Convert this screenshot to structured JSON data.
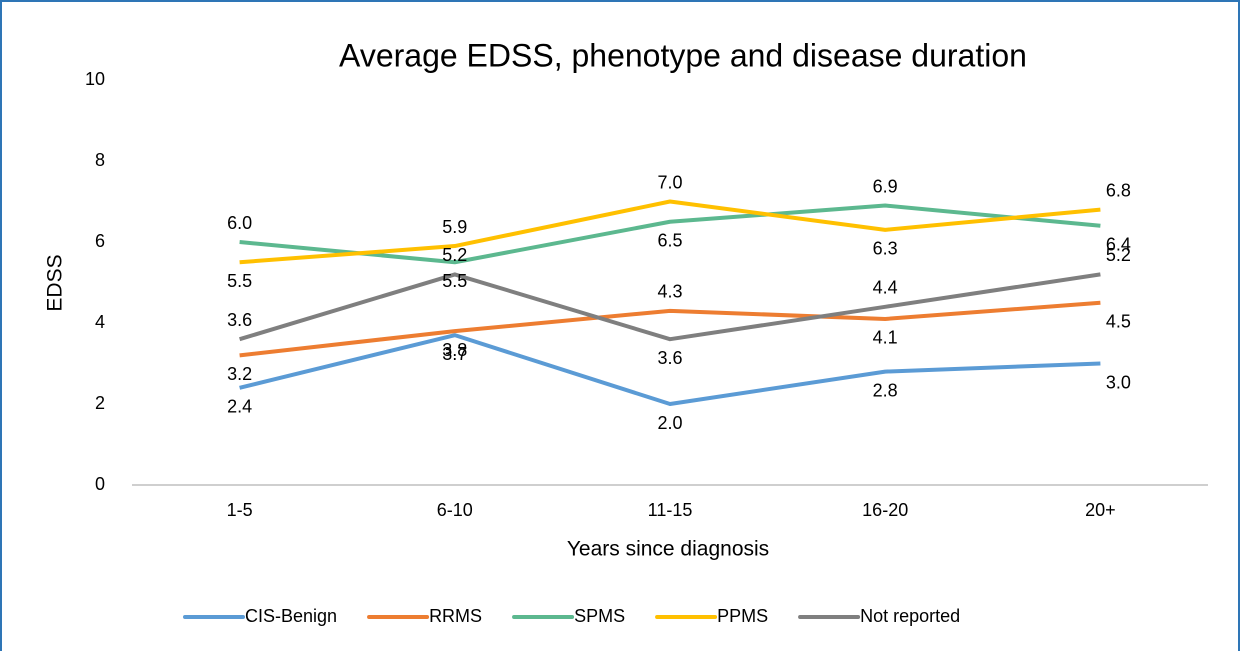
{
  "chart_data": {
    "type": "line",
    "title": "Average EDSS, phenotype and disease duration",
    "x_label": "Years since diagnosis",
    "y_label": "EDSS",
    "categories": [
      "1-5",
      "6-10",
      "11-15",
      "16-20",
      "20+"
    ],
    "ylim": [
      0,
      10
    ],
    "yticks": [
      0,
      2,
      4,
      6,
      8,
      10
    ],
    "grid": false,
    "legend": "bottom",
    "series": [
      {
        "name": "CIS-Benign",
        "color": "#5b9bd5",
        "values": [
          2.4,
          3.7,
          2.0,
          2.8,
          3.0
        ],
        "value_labels": [
          "2.4",
          "3.7",
          "2.0",
          "2.8",
          "3.0"
        ]
      },
      {
        "name": "RRMS",
        "color": "#ed7d31",
        "values": [
          3.2,
          3.8,
          4.3,
          4.1,
          4.5
        ],
        "value_labels": [
          "3.2",
          "3.8",
          "4.3",
          "4.1",
          "4.5"
        ]
      },
      {
        "name": "SPMS",
        "color": "#5cb88f",
        "values": [
          6.0,
          5.5,
          6.5,
          6.9,
          6.4
        ],
        "value_labels": [
          "6.0",
          "5.5",
          "6.5",
          "6.9",
          "6.4"
        ]
      },
      {
        "name": "PPMS",
        "color": "#ffc000",
        "values": [
          5.5,
          5.9,
          7.0,
          6.3,
          6.8
        ],
        "value_labels": [
          "5.5",
          "5.9",
          "7.0",
          "6.3",
          "6.8"
        ]
      },
      {
        "name": "Not reported",
        "color": "#7f7f7f",
        "values": [
          3.6,
          5.2,
          3.6,
          4.4,
          5.2
        ],
        "value_labels": [
          "3.6",
          "5.2",
          "3.6",
          "4.4",
          "5.2"
        ]
      }
    ]
  }
}
